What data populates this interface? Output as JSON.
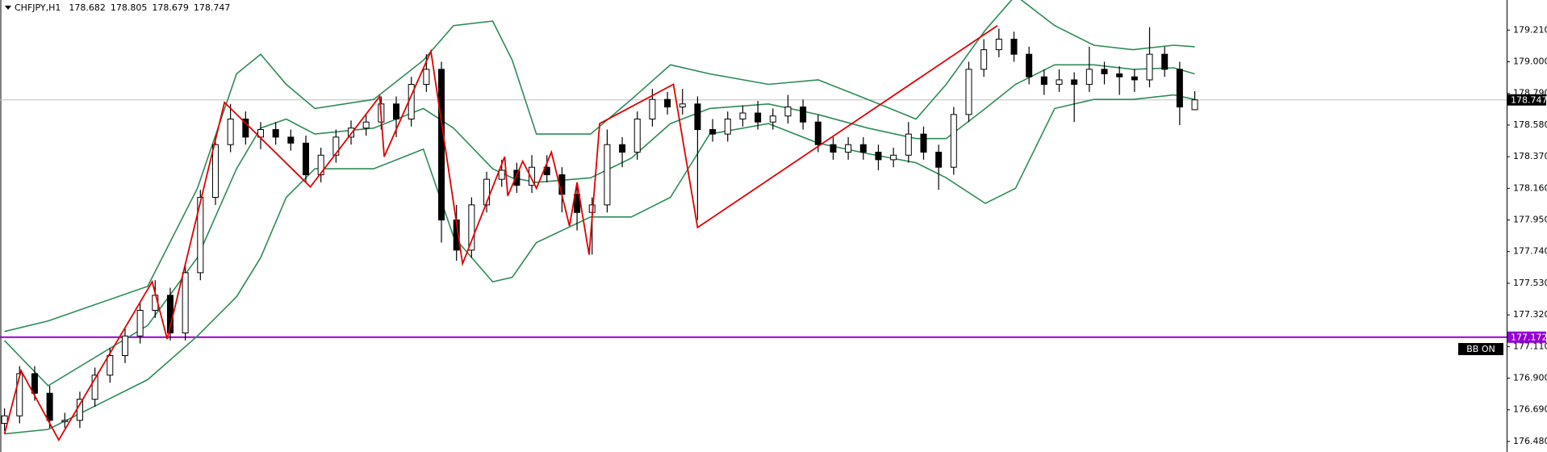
{
  "chart_data": {
    "type": "candlestick",
    "title": "CHFJPY,H1",
    "open": [
      176.6,
      176.65,
      176.93,
      176.8,
      176.62,
      176.62,
      176.76,
      176.92,
      177.05,
      177.18,
      177.35,
      177.45,
      177.2,
      177.6,
      178.1,
      178.45,
      178.62,
      178.5,
      178.55,
      178.5,
      178.46,
      178.25,
      178.38,
      178.5,
      178.56,
      178.6,
      178.72,
      178.62,
      178.85,
      178.95,
      177.95,
      177.75,
      178.05,
      178.22,
      178.28,
      178.18,
      178.3,
      178.25,
      178.12,
      178.0,
      178.05,
      178.45,
      178.4,
      178.62,
      178.75,
      178.7,
      178.72,
      178.55,
      178.52,
      178.62,
      178.66,
      178.6,
      178.64,
      178.7,
      178.6,
      178.45,
      178.4,
      178.45,
      178.4,
      178.35,
      178.38,
      178.52,
      178.4,
      178.3,
      178.65,
      178.95,
      179.08,
      179.15,
      179.05,
      178.9,
      178.85,
      178.88,
      178.85,
      178.95,
      178.92,
      178.9,
      178.88,
      179.05,
      178.95,
      178.682
    ],
    "high": [
      176.7,
      176.98,
      176.98,
      176.85,
      176.67,
      176.81,
      176.97,
      177.1,
      177.23,
      177.4,
      177.55,
      177.5,
      177.65,
      178.15,
      178.5,
      178.72,
      178.67,
      178.6,
      178.6,
      178.55,
      178.51,
      178.43,
      178.55,
      178.61,
      178.65,
      178.77,
      178.77,
      178.9,
      179.05,
      179.0,
      178.05,
      178.1,
      178.27,
      178.35,
      178.33,
      178.38,
      178.38,
      178.3,
      178.17,
      178.1,
      178.55,
      178.5,
      178.67,
      178.82,
      178.8,
      178.82,
      178.77,
      178.62,
      178.67,
      178.71,
      178.74,
      178.69,
      178.78,
      178.75,
      178.65,
      178.5,
      178.5,
      178.5,
      178.45,
      178.43,
      178.6,
      178.57,
      178.45,
      178.7,
      179.0,
      179.15,
      179.22,
      179.2,
      179.1,
      178.95,
      178.95,
      178.93,
      179.1,
      179.0,
      178.97,
      178.95,
      179.23,
      179.1,
      179.0,
      178.805
    ],
    "low": [
      176.55,
      176.6,
      176.75,
      176.57,
      176.57,
      176.57,
      176.71,
      176.87,
      177.0,
      177.13,
      177.3,
      177.15,
      177.15,
      177.55,
      178.05,
      178.4,
      178.45,
      178.42,
      178.45,
      178.41,
      178.2,
      178.2,
      178.33,
      178.45,
      178.51,
      178.55,
      178.5,
      178.57,
      178.8,
      177.8,
      177.68,
      177.7,
      178.0,
      178.17,
      178.13,
      178.13,
      178.2,
      178.0,
      177.88,
      177.72,
      178.0,
      178.3,
      178.35,
      178.57,
      178.65,
      178.65,
      177.95,
      178.47,
      178.47,
      178.57,
      178.55,
      178.55,
      178.59,
      178.55,
      178.4,
      178.35,
      178.35,
      178.35,
      178.28,
      178.3,
      178.33,
      178.35,
      178.15,
      178.25,
      178.6,
      178.9,
      179.03,
      179.0,
      178.85,
      178.78,
      178.8,
      178.6,
      178.8,
      178.85,
      178.78,
      178.8,
      178.83,
      178.9,
      178.58,
      178.679
    ],
    "close": [
      176.65,
      176.93,
      176.8,
      176.62,
      176.62,
      176.76,
      176.92,
      177.05,
      177.18,
      177.35,
      177.45,
      177.2,
      177.6,
      178.1,
      178.45,
      178.62,
      178.5,
      178.55,
      178.5,
      178.46,
      178.25,
      178.38,
      178.5,
      178.56,
      178.6,
      178.72,
      178.62,
      178.85,
      178.95,
      177.95,
      177.75,
      178.05,
      178.22,
      178.28,
      178.18,
      178.3,
      178.25,
      178.12,
      178.0,
      178.05,
      178.45,
      178.4,
      178.62,
      178.75,
      178.7,
      178.72,
      178.55,
      178.52,
      178.62,
      178.66,
      178.6,
      178.64,
      178.7,
      178.6,
      178.45,
      178.4,
      178.45,
      178.4,
      178.35,
      178.38,
      178.52,
      178.4,
      178.3,
      178.65,
      178.95,
      179.08,
      179.15,
      179.05,
      178.9,
      178.85,
      178.88,
      178.85,
      178.95,
      178.92,
      178.9,
      178.88,
      179.05,
      178.95,
      178.7,
      178.747
    ],
    "xlim": [
      -0.3,
      99.7
    ],
    "ylim": [
      176.41,
      179.41
    ],
    "yticks": [
      {
        "value": 179.21,
        "label": "179.210"
      },
      {
        "value": 179,
        "label": "179.000"
      },
      {
        "value": 178.79,
        "label": "178.790"
      },
      {
        "value": 178.58,
        "label": "178.580"
      },
      {
        "value": 178.37,
        "label": "178.370"
      },
      {
        "value": 178.16,
        "label": "178.160"
      },
      {
        "value": 177.95,
        "label": "177.950"
      },
      {
        "value": 177.74,
        "label": "177.740"
      },
      {
        "value": 177.53,
        "label": "177.530"
      },
      {
        "value": 177.32,
        "label": "177.320"
      },
      {
        "value": 177.11,
        "label": "177.110"
      },
      {
        "value": 176.9,
        "label": "176.900"
      },
      {
        "value": 176.69,
        "label": "176.690"
      },
      {
        "value": 176.48,
        "label": "176.480"
      }
    ],
    "grid": false,
    "bull_color": "#ffffff",
    "bear_color": "#000000",
    "bollinger": {
      "color": "#2e8b57",
      "x": [
        0,
        2.9,
        9.5,
        12.8,
        15.4,
        17,
        18.7,
        20.6,
        24.5,
        27.8,
        29.8,
        32.4,
        33.7,
        35.3,
        38.9,
        41.6,
        44.2,
        46.8,
        50.7,
        54,
        57.3,
        60.5,
        62.5,
        65.1,
        67.1,
        69.7,
        72.3,
        74.9,
        77.6,
        79
      ],
      "upper": [
        177.21,
        177.28,
        177.51,
        178.16,
        178.92,
        179.05,
        178.85,
        178.69,
        178.75,
        179.01,
        179.24,
        179.27,
        179.01,
        178.52,
        178.52,
        178.75,
        178.98,
        178.92,
        178.85,
        178.88,
        178.75,
        178.62,
        178.85,
        179.21,
        179.44,
        179.24,
        179.11,
        179.08,
        179.11,
        179.1
      ],
      "middle": [
        177.15,
        176.85,
        177.25,
        177.7,
        178.29,
        178.56,
        178.62,
        178.52,
        178.56,
        178.69,
        178.56,
        178.29,
        178.23,
        178.2,
        178.23,
        178.36,
        178.59,
        178.69,
        178.72,
        178.65,
        178.56,
        178.49,
        178.49,
        178.69,
        178.85,
        178.98,
        178.98,
        178.95,
        178.96,
        178.92
      ],
      "lower": [
        176.53,
        176.56,
        176.89,
        177.18,
        177.44,
        177.7,
        178.1,
        178.29,
        178.29,
        178.42,
        177.84,
        177.54,
        177.57,
        177.8,
        177.97,
        177.97,
        178.1,
        178.52,
        178.59,
        178.46,
        178.39,
        178.33,
        178.23,
        178.06,
        178.16,
        178.69,
        178.75,
        178.75,
        178.78,
        178.75
      ]
    },
    "zigzag": {
      "color": "#e00000",
      "x": [
        0,
        1.1,
        3.6,
        9.8,
        10.8,
        14.6,
        20.3,
        24.9,
        25.2,
        28.3,
        30.4,
        33.2,
        33.4,
        34.4,
        35.3,
        36.3,
        37.5,
        38,
        38.8,
        39.5,
        44.4,
        46,
        65.9
      ],
      "values": [
        176.53,
        176.95,
        176.49,
        177.54,
        177.16,
        178.73,
        178.17,
        178.77,
        178.37,
        179.07,
        177.66,
        178.37,
        178.11,
        178.34,
        178.16,
        178.4,
        177.91,
        178.2,
        177.72,
        178.59,
        178.85,
        177.9,
        179.24
      ]
    },
    "price_line_color": "#c0c0c0",
    "level": {
      "value": 177.172,
      "color": "#9400d3"
    },
    "annotation": "BB ON"
  }
}
